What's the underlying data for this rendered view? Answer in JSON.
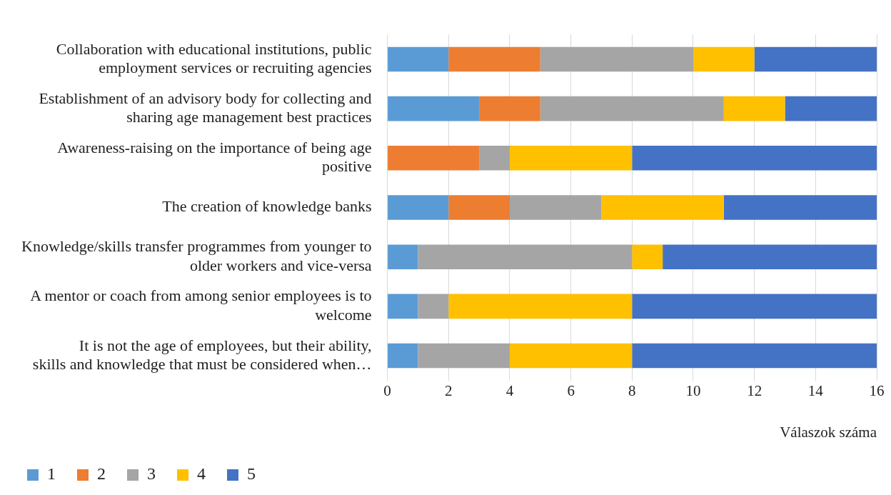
{
  "chart_data": {
    "type": "bar",
    "orientation": "horizontal",
    "stacked": true,
    "categories": [
      "Collaboration with educational institutions, public employment services or recruiting agencies",
      "Establishment of an advisory body for collecting and sharing age management best practices",
      "Awareness-raising on the importance of being age positive",
      "The creation of knowledge banks",
      "Knowledge/skills transfer programmes from younger to older workers and vice-versa",
      "A mentor or coach from among senior employees is to welcome",
      "It is not the age of employees, but their ability, skills and knowledge that must be considered when…"
    ],
    "series": [
      {
        "name": "1",
        "color": "#5b9bd5",
        "values": [
          2,
          3,
          0,
          2,
          1,
          1,
          1
        ]
      },
      {
        "name": "2",
        "color": "#ed7d31",
        "values": [
          3,
          2,
          3,
          2,
          0,
          0,
          0
        ]
      },
      {
        "name": "3",
        "color": "#a5a5a5",
        "values": [
          5,
          6,
          1,
          3,
          7,
          1,
          3
        ]
      },
      {
        "name": "4",
        "color": "#ffc000",
        "values": [
          2,
          2,
          4,
          4,
          1,
          6,
          4
        ]
      },
      {
        "name": "5",
        "color": "#4472c4",
        "values": [
          4,
          3,
          8,
          5,
          7,
          8,
          8
        ]
      }
    ],
    "xlim": [
      0,
      16
    ],
    "xticks": [
      0,
      2,
      4,
      6,
      8,
      10,
      12,
      14,
      16
    ],
    "xlabel": "Válaszok száma",
    "grid": "x",
    "legend": "bottom left"
  }
}
